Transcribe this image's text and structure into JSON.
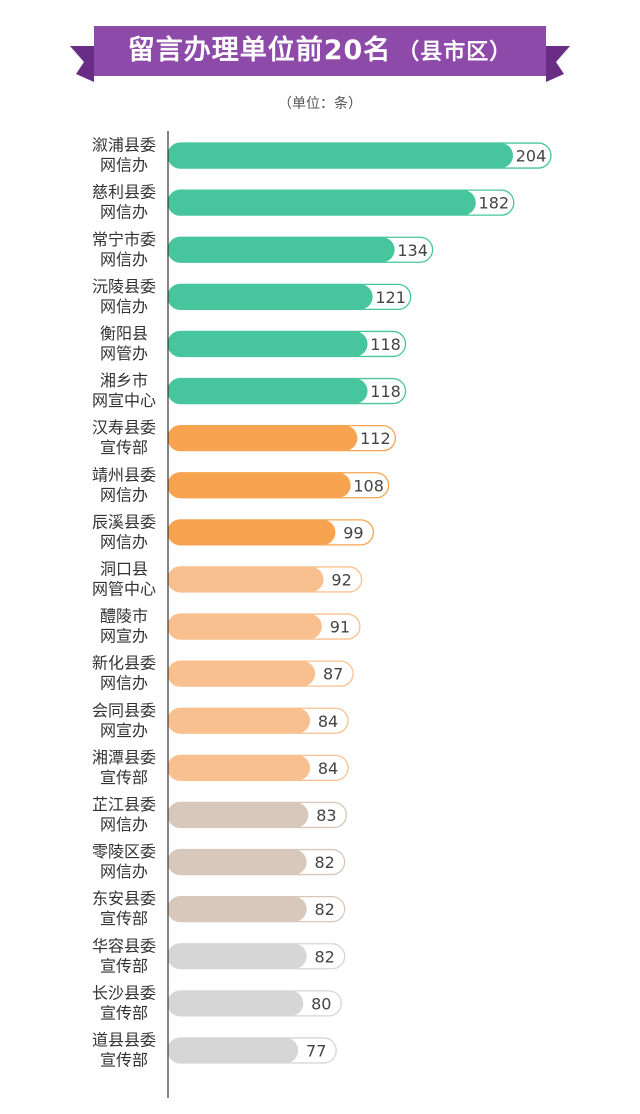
{
  "header": {
    "title": "留言办理单位前20名",
    "subtitle": "（县市区）"
  },
  "unit_label": "（单位：条）",
  "colors": {
    "banner": "#8e4aa8",
    "banner_dark": "#6a2d86",
    "green": "#47c59c",
    "orange": "#f8a34f",
    "peach": "#f9c08f",
    "taupe": "#d8c8bb",
    "gray": "#d6d6d6"
  },
  "chart_data": {
    "type": "bar",
    "orientation": "horizontal",
    "title": "留言办理单位前20名（县市区）",
    "unit": "（单位：条）",
    "categories": [
      [
        "溆浦县委",
        "网信办"
      ],
      [
        "慈利县委",
        "网信办"
      ],
      [
        "常宁市委",
        "网信办"
      ],
      [
        "沅陵县委",
        "网信办"
      ],
      [
        "衡阳县",
        "网管办"
      ],
      [
        "湘乡市",
        "网宣中心"
      ],
      [
        "汉寿县委",
        "宣传部"
      ],
      [
        "靖州县委",
        "网信办"
      ],
      [
        "辰溪县委",
        "网信办"
      ],
      [
        "洞口县",
        "网管中心"
      ],
      [
        "醴陵市",
        "网宣办"
      ],
      [
        "新化县委",
        "网信办"
      ],
      [
        "会同县委",
        "网宣办"
      ],
      [
        "湘潭县委",
        "宣传部"
      ],
      [
        "芷江县委",
        "网信办"
      ],
      [
        "零陵区委",
        "网信办"
      ],
      [
        "东安县委",
        "宣传部"
      ],
      [
        "华容县委",
        "宣传部"
      ],
      [
        "长沙县委",
        "宣传部"
      ],
      [
        "道县县委",
        "宣传部"
      ]
    ],
    "values": [
      204,
      182,
      134,
      121,
      118,
      118,
      112,
      108,
      99,
      92,
      91,
      87,
      84,
      84,
      83,
      82,
      82,
      82,
      80,
      77
    ],
    "bar_colors": [
      "#47c59c",
      "#47c59c",
      "#47c59c",
      "#47c59c",
      "#47c59c",
      "#47c59c",
      "#f8a34f",
      "#f8a34f",
      "#f8a34f",
      "#f9c08f",
      "#f9c08f",
      "#f9c08f",
      "#f9c08f",
      "#f9c08f",
      "#d8c8bb",
      "#d8c8bb",
      "#d8c8bb",
      "#d6d6d6",
      "#d6d6d6",
      "#d6d6d6"
    ],
    "xlim": [
      0,
      204
    ],
    "grid": false,
    "legend": "none"
  }
}
